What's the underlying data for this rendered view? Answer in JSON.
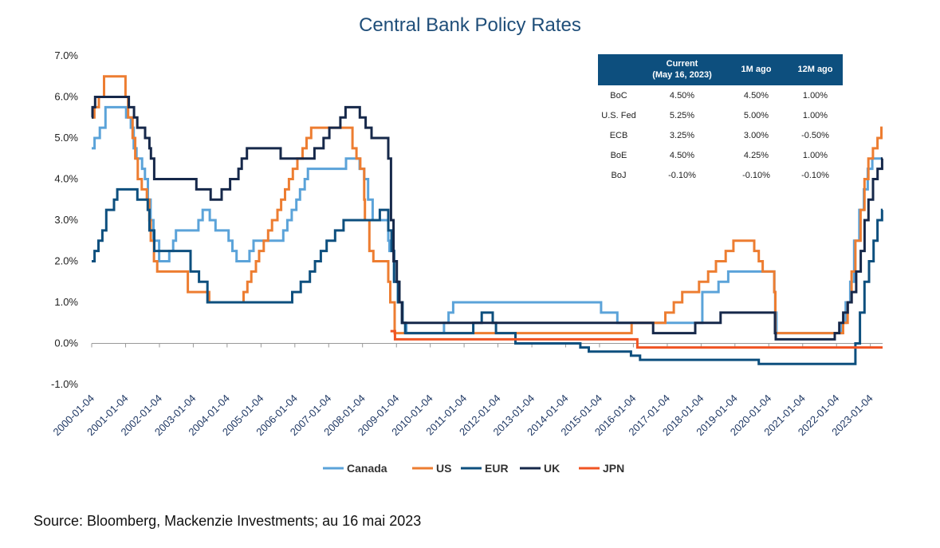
{
  "title": "Central Bank Policy Rates",
  "source": "Source: Bloomberg, Mackenzie Investments; au 16 mai 2023",
  "table": {
    "headers": [
      "",
      "Current\n(May 16, 2023)",
      "1M ago",
      "12M ago"
    ],
    "rows": [
      [
        "BoC",
        "4.50%",
        "4.50%",
        "1.00%"
      ],
      [
        "U.S. Fed",
        "5.25%",
        "5.00%",
        "1.00%"
      ],
      [
        "ECB",
        "3.25%",
        "3.00%",
        "-0.50%"
      ],
      [
        "BoE",
        "4.50%",
        "4.25%",
        "1.00%"
      ],
      [
        "BoJ",
        "-0.10%",
        "-0.10%",
        "-0.10%"
      ]
    ]
  },
  "chart_data": {
    "type": "line",
    "step": true,
    "title": "Central Bank Policy Rates",
    "xlabel": "",
    "ylabel": "",
    "xlim": [
      "2000-01-04",
      "2023-05-16"
    ],
    "ylim": [
      -1.0,
      7.0
    ],
    "y_ticks": [
      -1.0,
      0.0,
      1.0,
      2.0,
      3.0,
      4.0,
      5.0,
      6.0,
      7.0
    ],
    "y_tick_labels": [
      "-1.0%",
      "0.0%",
      "1.0%",
      "2.0%",
      "3.0%",
      "4.0%",
      "5.0%",
      "6.0%",
      "7.0%"
    ],
    "x_ticks": [
      "2000-01-04",
      "2001-01-04",
      "2002-01-04",
      "2003-01-04",
      "2004-01-04",
      "2005-01-04",
      "2006-01-04",
      "2007-01-04",
      "2008-01-04",
      "2009-01-04",
      "2010-01-04",
      "2011-01-04",
      "2012-01-04",
      "2013-01-04",
      "2014-01-04",
      "2015-01-04",
      "2016-01-04",
      "2017-01-04",
      "2018-01-04",
      "2019-01-04",
      "2020-01-04",
      "2021-01-04",
      "2022-01-04",
      "2023-01-04"
    ],
    "grid": false,
    "legend": "bottom",
    "series": [
      {
        "name": "Canada",
        "color": "#5ba3d9",
        "points": [
          [
            "2000-01-04",
            4.75
          ],
          [
            "2000-02-04",
            5.0
          ],
          [
            "2000-04-01",
            5.25
          ],
          [
            "2000-06-01",
            5.75
          ],
          [
            "2001-01-10",
            5.5
          ],
          [
            "2001-03-01",
            5.25
          ],
          [
            "2001-04-01",
            4.75
          ],
          [
            "2001-05-01",
            4.5
          ],
          [
            "2001-07-01",
            4.25
          ],
          [
            "2001-08-01",
            4.0
          ],
          [
            "2001-09-01",
            3.5
          ],
          [
            "2001-10-01",
            3.0
          ],
          [
            "2001-11-01",
            2.5
          ],
          [
            "2002-01-01",
            2.0
          ],
          [
            "2002-04-20",
            2.25
          ],
          [
            "2002-06-01",
            2.5
          ],
          [
            "2002-07-01",
            2.75
          ],
          [
            "2003-03-01",
            3.0
          ],
          [
            "2003-04-15",
            3.25
          ],
          [
            "2003-07-01",
            3.0
          ],
          [
            "2003-09-01",
            2.75
          ],
          [
            "2004-01-20",
            2.5
          ],
          [
            "2004-03-01",
            2.25
          ],
          [
            "2004-04-15",
            2.0
          ],
          [
            "2004-09-01",
            2.25
          ],
          [
            "2004-10-15",
            2.5
          ],
          [
            "2005-09-01",
            2.75
          ],
          [
            "2005-10-15",
            3.0
          ],
          [
            "2005-12-01",
            3.25
          ],
          [
            "2006-01-20",
            3.5
          ],
          [
            "2006-03-01",
            3.75
          ],
          [
            "2006-04-20",
            4.0
          ],
          [
            "2006-05-25",
            4.25
          ],
          [
            "2007-07-10",
            4.5
          ],
          [
            "2007-12-04",
            4.25
          ],
          [
            "2008-01-22",
            4.0
          ],
          [
            "2008-03-04",
            3.5
          ],
          [
            "2008-04-22",
            3.0
          ],
          [
            "2008-10-08",
            2.5
          ],
          [
            "2008-10-21",
            2.25
          ],
          [
            "2008-12-09",
            1.5
          ],
          [
            "2009-01-20",
            1.0
          ],
          [
            "2009-03-03",
            0.5
          ],
          [
            "2009-04-21",
            0.25
          ],
          [
            "2010-06-01",
            0.5
          ],
          [
            "2010-07-20",
            0.75
          ],
          [
            "2010-09-08",
            1.0
          ],
          [
            "2015-01-21",
            0.75
          ],
          [
            "2015-07-15",
            0.5
          ],
          [
            "2018-01-17",
            1.25
          ],
          [
            "2018-07-11",
            1.5
          ],
          [
            "2018-10-24",
            1.75
          ],
          [
            "2020-03-04",
            1.25
          ],
          [
            "2020-03-13",
            0.75
          ],
          [
            "2020-03-27",
            0.25
          ],
          [
            "2022-03-02",
            0.5
          ],
          [
            "2022-04-13",
            1.0
          ],
          [
            "2022-06-01",
            1.5
          ],
          [
            "2022-07-13",
            2.5
          ],
          [
            "2022-09-07",
            3.25
          ],
          [
            "2022-10-26",
            3.75
          ],
          [
            "2022-12-07",
            4.25
          ],
          [
            "2023-01-25",
            4.5
          ],
          [
            "2023-05-16",
            4.5
          ]
        ]
      },
      {
        "name": "US",
        "color": "#ed7d31",
        "points": [
          [
            "2000-01-04",
            5.5
          ],
          [
            "2000-02-02",
            5.75
          ],
          [
            "2000-03-21",
            6.0
          ],
          [
            "2000-05-16",
            6.5
          ],
          [
            "2001-01-03",
            6.0
          ],
          [
            "2001-01-31",
            5.5
          ],
          [
            "2001-03-20",
            5.0
          ],
          [
            "2001-04-18",
            4.5
          ],
          [
            "2001-05-15",
            4.0
          ],
          [
            "2001-06-27",
            3.75
          ],
          [
            "2001-08-21",
            3.5
          ],
          [
            "2001-09-17",
            3.0
          ],
          [
            "2001-10-02",
            2.5
          ],
          [
            "2001-11-06",
            2.0
          ],
          [
            "2001-12-11",
            1.75
          ],
          [
            "2002-11-06",
            1.25
          ],
          [
            "2003-06-25",
            1.0
          ],
          [
            "2004-06-30",
            1.25
          ],
          [
            "2004-08-10",
            1.5
          ],
          [
            "2004-09-21",
            1.75
          ],
          [
            "2004-11-10",
            2.0
          ],
          [
            "2004-12-14",
            2.25
          ],
          [
            "2005-02-02",
            2.5
          ],
          [
            "2005-03-22",
            2.75
          ],
          [
            "2005-05-03",
            3.0
          ],
          [
            "2005-06-30",
            3.25
          ],
          [
            "2005-08-09",
            3.5
          ],
          [
            "2005-09-20",
            3.75
          ],
          [
            "2005-11-01",
            4.0
          ],
          [
            "2005-12-13",
            4.25
          ],
          [
            "2006-01-31",
            4.5
          ],
          [
            "2006-03-28",
            4.75
          ],
          [
            "2006-05-10",
            5.0
          ],
          [
            "2006-06-29",
            5.25
          ],
          [
            "2007-09-18",
            4.75
          ],
          [
            "2007-10-31",
            4.5
          ],
          [
            "2007-12-11",
            4.25
          ],
          [
            "2008-01-22",
            3.5
          ],
          [
            "2008-01-30",
            3.0
          ],
          [
            "2008-03-18",
            2.25
          ],
          [
            "2008-04-30",
            2.0
          ],
          [
            "2008-10-08",
            1.5
          ],
          [
            "2008-10-29",
            1.0
          ],
          [
            "2008-12-16",
            0.25
          ],
          [
            "2015-12-16",
            0.5
          ],
          [
            "2016-12-14",
            0.75
          ],
          [
            "2017-03-15",
            1.0
          ],
          [
            "2017-06-14",
            1.25
          ],
          [
            "2017-12-13",
            1.5
          ],
          [
            "2018-03-21",
            1.75
          ],
          [
            "2018-06-13",
            2.0
          ],
          [
            "2018-09-26",
            2.25
          ],
          [
            "2018-12-19",
            2.5
          ],
          [
            "2019-07-31",
            2.25
          ],
          [
            "2019-09-18",
            2.0
          ],
          [
            "2019-10-30",
            1.75
          ],
          [
            "2020-03-03",
            1.25
          ],
          [
            "2020-03-15",
            0.25
          ],
          [
            "2022-03-16",
            0.5
          ],
          [
            "2022-05-04",
            1.0
          ],
          [
            "2022-06-15",
            1.75
          ],
          [
            "2022-07-27",
            2.5
          ],
          [
            "2022-09-21",
            3.25
          ],
          [
            "2022-11-02",
            4.0
          ],
          [
            "2022-12-14",
            4.5
          ],
          [
            "2023-02-01",
            4.75
          ],
          [
            "2023-03-22",
            5.0
          ],
          [
            "2023-05-03",
            5.25
          ],
          [
            "2023-05-16",
            5.25
          ]
        ]
      },
      {
        "name": "EUR",
        "color": "#0d4f7e",
        "points": [
          [
            "2000-01-04",
            2.0
          ],
          [
            "2000-02-04",
            2.25
          ],
          [
            "2000-03-17",
            2.5
          ],
          [
            "2000-04-28",
            2.75
          ],
          [
            "2000-06-09",
            3.25
          ],
          [
            "2000-09-01",
            3.5
          ],
          [
            "2000-10-06",
            3.75
          ],
          [
            "2001-05-11",
            3.5
          ],
          [
            "2001-08-31",
            3.25
          ],
          [
            "2001-09-18",
            2.75
          ],
          [
            "2001-11-09",
            2.25
          ],
          [
            "2002-12-06",
            1.75
          ],
          [
            "2003-03-07",
            1.5
          ],
          [
            "2003-06-06",
            1.0
          ],
          [
            "2005-12-06",
            1.25
          ],
          [
            "2006-03-08",
            1.5
          ],
          [
            "2006-06-15",
            1.75
          ],
          [
            "2006-08-09",
            2.0
          ],
          [
            "2006-10-11",
            2.25
          ],
          [
            "2006-12-13",
            2.5
          ],
          [
            "2007-03-14",
            2.75
          ],
          [
            "2007-06-13",
            3.0
          ],
          [
            "2008-07-09",
            3.25
          ],
          [
            "2008-10-08",
            2.75
          ],
          [
            "2008-11-12",
            2.25
          ],
          [
            "2008-12-10",
            1.5
          ],
          [
            "2009-01-21",
            1.0
          ],
          [
            "2009-03-11",
            0.5
          ],
          [
            "2009-04-08",
            0.25
          ],
          [
            "2011-04-13",
            0.5
          ],
          [
            "2011-07-13",
            0.75
          ],
          [
            "2011-11-09",
            0.5
          ],
          [
            "2011-12-14",
            0.25
          ],
          [
            "2012-07-11",
            0.0
          ],
          [
            "2014-06-11",
            -0.1
          ],
          [
            "2014-09-10",
            -0.2
          ],
          [
            "2015-12-09",
            -0.3
          ],
          [
            "2016-03-16",
            -0.4
          ],
          [
            "2019-09-18",
            -0.5
          ],
          [
            "2022-07-27",
            0.0
          ],
          [
            "2022-09-14",
            0.75
          ],
          [
            "2022-11-02",
            1.5
          ],
          [
            "2022-12-21",
            2.0
          ],
          [
            "2023-02-08",
            2.5
          ],
          [
            "2023-03-22",
            3.0
          ],
          [
            "2023-05-10",
            3.25
          ],
          [
            "2023-05-16",
            3.25
          ]
        ]
      },
      {
        "name": "UK",
        "color": "#16284a",
        "points": [
          [
            "2000-01-04",
            5.5
          ],
          [
            "2000-01-13",
            5.75
          ],
          [
            "2000-02-10",
            6.0
          ],
          [
            "2001-02-08",
            5.75
          ],
          [
            "2001-04-05",
            5.5
          ],
          [
            "2001-05-10",
            5.25
          ],
          [
            "2001-08-02",
            5.0
          ],
          [
            "2001-09-18",
            4.75
          ],
          [
            "2001-10-04",
            4.5
          ],
          [
            "2001-11-08",
            4.0
          ],
          [
            "2003-02-06",
            3.75
          ],
          [
            "2003-07-10",
            3.5
          ],
          [
            "2003-11-06",
            3.75
          ],
          [
            "2004-02-05",
            4.0
          ],
          [
            "2004-05-06",
            4.25
          ],
          [
            "2004-06-10",
            4.5
          ],
          [
            "2004-08-05",
            4.75
          ],
          [
            "2005-08-04",
            4.5
          ],
          [
            "2006-08-03",
            4.75
          ],
          [
            "2006-11-09",
            5.0
          ],
          [
            "2007-01-11",
            5.25
          ],
          [
            "2007-05-10",
            5.5
          ],
          [
            "2007-07-05",
            5.75
          ],
          [
            "2007-12-06",
            5.5
          ],
          [
            "2008-02-07",
            5.25
          ],
          [
            "2008-04-10",
            5.0
          ],
          [
            "2008-10-08",
            4.5
          ],
          [
            "2008-11-06",
            3.0
          ],
          [
            "2008-12-04",
            2.0
          ],
          [
            "2009-01-08",
            1.5
          ],
          [
            "2009-02-05",
            1.0
          ],
          [
            "2009-03-05",
            0.5
          ],
          [
            "2016-08-04",
            0.25
          ],
          [
            "2017-11-02",
            0.5
          ],
          [
            "2018-08-02",
            0.75
          ],
          [
            "2020-03-11",
            0.25
          ],
          [
            "2020-03-19",
            0.1
          ],
          [
            "2021-12-16",
            0.25
          ],
          [
            "2022-02-03",
            0.5
          ],
          [
            "2022-03-17",
            0.75
          ],
          [
            "2022-05-05",
            1.0
          ],
          [
            "2022-06-16",
            1.25
          ],
          [
            "2022-08-04",
            1.75
          ],
          [
            "2022-09-22",
            2.25
          ],
          [
            "2022-11-03",
            3.0
          ],
          [
            "2022-12-15",
            3.5
          ],
          [
            "2023-02-02",
            4.0
          ],
          [
            "2023-03-23",
            4.25
          ],
          [
            "2023-05-11",
            4.5
          ],
          [
            "2023-05-16",
            4.5
          ]
        ]
      },
      {
        "name": "JPN",
        "color": "#f05423",
        "points": [
          [
            "2008-10-31",
            0.3
          ],
          [
            "2008-12-19",
            0.1
          ],
          [
            "2016-02-16",
            -0.1
          ],
          [
            "2023-05-16",
            -0.1
          ]
        ]
      }
    ]
  }
}
